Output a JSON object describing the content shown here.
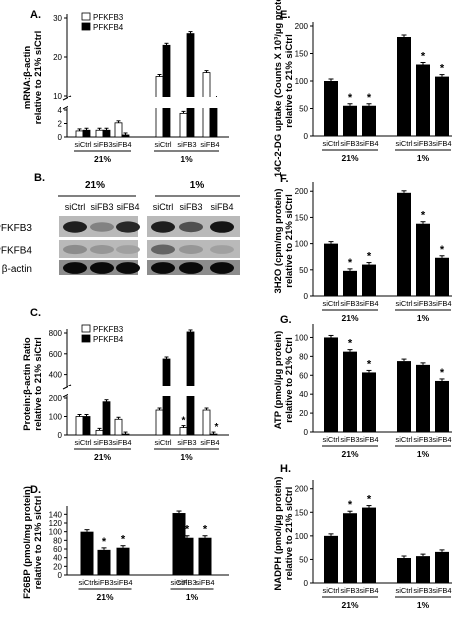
{
  "chart_data": [
    {
      "id": "A",
      "panel_label": "A.",
      "type": "bar",
      "ylabel": "mRNA:β-actin relative to 21% siCtrl",
      "yaxis_break": true,
      "yticks_lower": [
        "0",
        "2",
        "4"
      ],
      "yticks_upper": [
        "10",
        "20",
        "30"
      ],
      "categories": [
        "siCtrl",
        "siFB3",
        "siFB4",
        "siCtrl",
        "siFB3",
        "siFB4"
      ],
      "groups": [
        "21%",
        "1%"
      ],
      "series": [
        {
          "name": "PFKFB3",
          "color": "#ffffff",
          "values": [
            0.9,
            1.0,
            2.1,
            15,
            3.5,
            16
          ]
        },
        {
          "name": "PFKFB4",
          "color": "#000000",
          "values": [
            1.0,
            1.0,
            0.3,
            23,
            26,
            5.6
          ]
        }
      ],
      "significant": [
        [],
        [],
        [],
        [],
        [
          "PFKFB3"
        ],
        [
          "PFKFB4"
        ]
      ],
      "star": "*"
    },
    {
      "id": "B",
      "panel_label": "B.",
      "type": "blot",
      "conditions": [
        "21%",
        "1%"
      ],
      "lanes": [
        "siCtrl",
        "siFB3",
        "siFB4",
        "siCtrl",
        "siFB3",
        "siFB4"
      ],
      "rows": [
        "PFKFB3",
        "PFKFB4",
        "β-actin"
      ]
    },
    {
      "id": "C",
      "panel_label": "C.",
      "type": "bar",
      "ylabel": "Protein:β-actin Ratio relative to 21% siCtrl",
      "yaxis_break": true,
      "yticks_lower": [
        "0",
        "100",
        "200"
      ],
      "yticks_upper": [
        "400",
        "600",
        "800"
      ],
      "categories": [
        "siCtrl",
        "siFB3",
        "siFB4",
        "siCtrl",
        "siFB3",
        "siFB4"
      ],
      "groups": [
        "21%",
        "1%"
      ],
      "series": [
        {
          "name": "PFKFB3",
          "color": "#ffffff",
          "values": [
            100,
            25,
            85,
            135,
            40,
            135
          ]
        },
        {
          "name": "PFKFB4",
          "color": "#000000",
          "values": [
            100,
            180,
            5,
            550,
            810,
            5
          ]
        }
      ],
      "significant": [
        [],
        [],
        [],
        [],
        [
          "PFKFB3"
        ],
        [
          "PFKFB4"
        ]
      ],
      "star": "*"
    },
    {
      "id": "D",
      "panel_label": "D.",
      "type": "bar",
      "ylabel": "F26BP (pmol/mg protein) relative to 21% siCtrl",
      "ylim": [
        0,
        150
      ],
      "yticks": [
        "0",
        "20",
        "40",
        "60",
        "80",
        "100",
        "120",
        "140"
      ],
      "categories": [
        "siCtrl",
        "siFB3",
        "siFB4",
        "siCtrl",
        "siFB3",
        "siFB4"
      ],
      "groups": [
        "21%",
        "1%"
      ],
      "values": [
        100,
        58,
        63,
        143,
        86,
        86
      ],
      "significant": [
        false,
        true,
        true,
        false,
        true,
        true
      ],
      "star": "*"
    },
    {
      "id": "E",
      "panel_label": "E.",
      "type": "bar",
      "ylabel": "14C-2-DG uptake (Counts X 10³/µg protein) relative to 21% siCtrl",
      "ylim": [
        0,
        200
      ],
      "yticks": [
        "0",
        "50",
        "100",
        "150",
        "200"
      ],
      "categories": [
        "siCtrl",
        "siFB3",
        "siFB4",
        "siCtrl",
        "siFB3",
        "siFB4"
      ],
      "groups": [
        "21%",
        "1%"
      ],
      "values": [
        100,
        55,
        55,
        180,
        130,
        108
      ],
      "significant": [
        false,
        true,
        true,
        false,
        true,
        true
      ],
      "star": "*"
    },
    {
      "id": "F",
      "panel_label": "F.",
      "type": "bar",
      "ylabel": "3H2O (cpm/mg protein) relative to 21% siCtrl",
      "ylim": [
        0,
        210
      ],
      "yticks": [
        "0",
        "50",
        "100",
        "150",
        "200"
      ],
      "categories": [
        "siCtrl",
        "siFB3",
        "siFB4",
        "siCtrl",
        "siFB3",
        "siFB4"
      ],
      "groups": [
        "21%",
        "1%"
      ],
      "values": [
        100,
        48,
        60,
        197,
        138,
        73
      ],
      "significant": [
        false,
        true,
        true,
        false,
        true,
        true
      ],
      "star": "*"
    },
    {
      "id": "G",
      "panel_label": "G.",
      "type": "bar",
      "ylabel": "ATP (pmol/µg protein) relative to 21% Ctrl",
      "ylim": [
        0,
        110
      ],
      "yticks": [
        "0",
        "20",
        "40",
        "60",
        "80",
        "100"
      ],
      "categories": [
        "siCtrl",
        "siFB3",
        "siFB4",
        "siCtrl",
        "siFB3",
        "siFB4"
      ],
      "groups": [
        "21%",
        "1%"
      ],
      "values": [
        100,
        85,
        63,
        75,
        71,
        54
      ],
      "significant": [
        false,
        true,
        true,
        false,
        false,
        true
      ],
      "star": "*"
    },
    {
      "id": "H",
      "panel_label": "H.",
      "type": "bar",
      "ylabel": "NADPH (pmol/µg protein) relative to 21% siCtrl",
      "ylim": [
        0,
        210
      ],
      "yticks": [
        "0",
        "50",
        "100",
        "150",
        "200"
      ],
      "categories": [
        "siCtrl",
        "siFB3",
        "siFB4",
        "siCtrl",
        "siFB3",
        "siFB4"
      ],
      "groups": [
        "21%",
        "1%"
      ],
      "values": [
        100,
        148,
        160,
        53,
        57,
        66
      ],
      "significant": [
        false,
        true,
        true,
        false,
        false,
        false
      ],
      "star": "*"
    }
  ]
}
